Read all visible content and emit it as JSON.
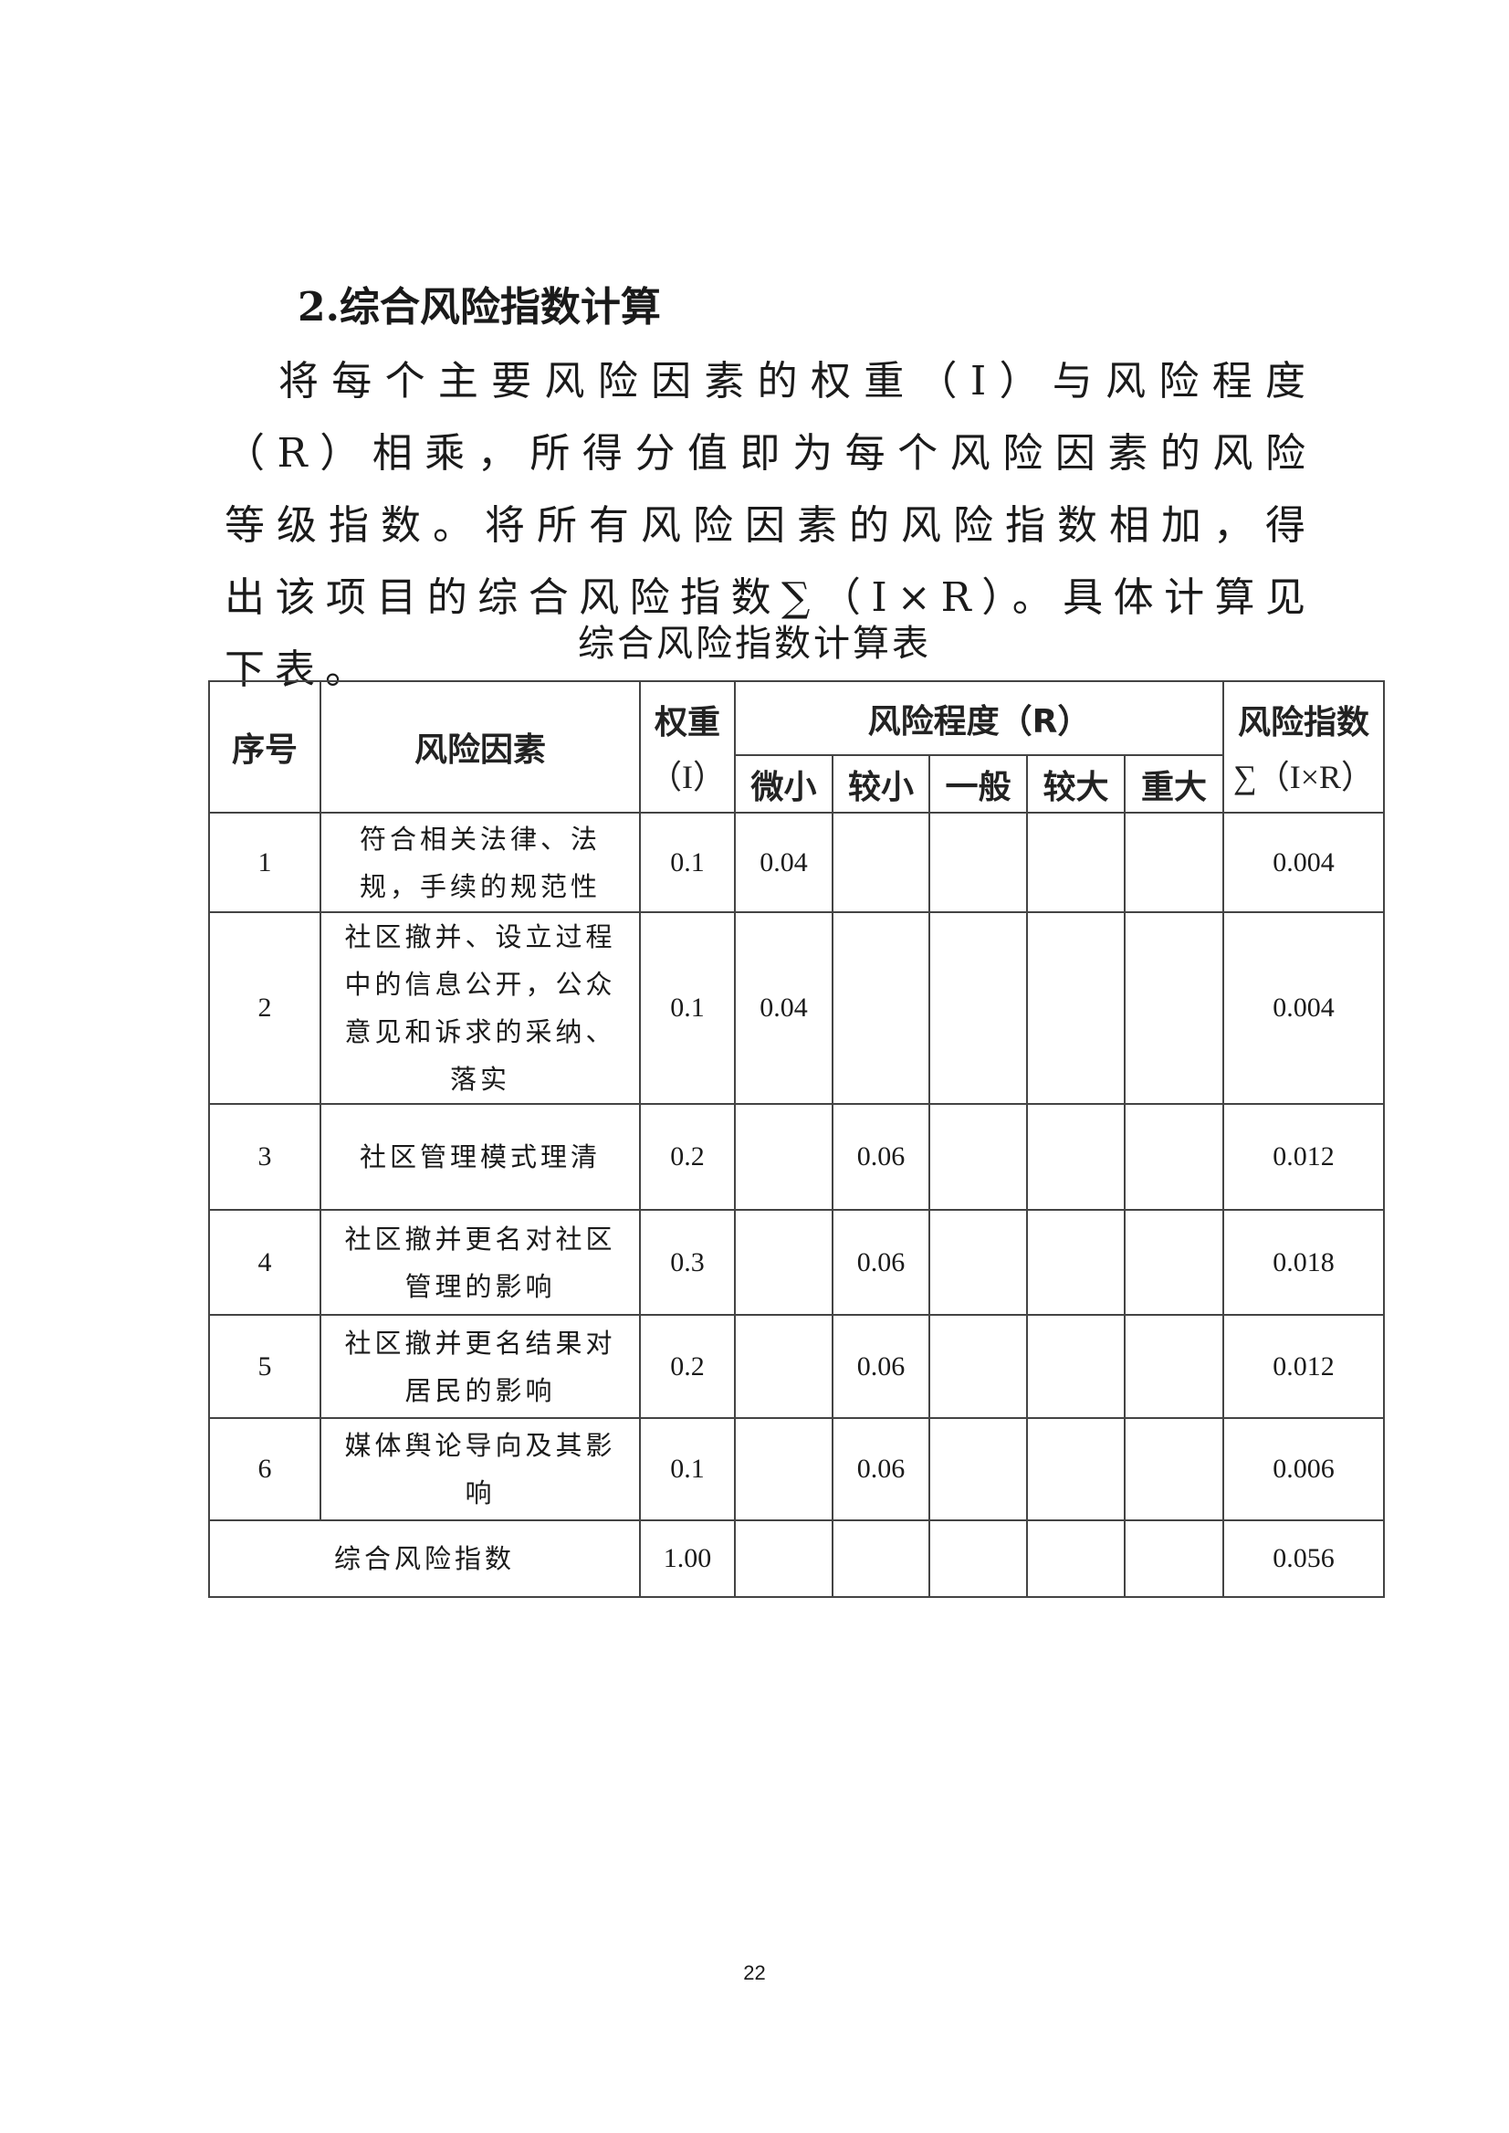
{
  "heading": "2.综合风险指数计算",
  "paragraph": "将每个主要风险因素的权重（I）与风险程度（R）相乘，所得分值即为每个风险因素的风险等级指数。将所有风险因素的风险指数相加，得出该项目的综合风险指数∑（I×R）。具体计算见下表。",
  "table": {
    "caption": "综合风险指数计算表",
    "headers": {
      "index": "序号",
      "factor": "风险因素",
      "weight_line1": "权重",
      "weight_line2": "（I）",
      "degree": "风险程度（R）",
      "levels": [
        "微小",
        "较小",
        "一般",
        "较大",
        "重大"
      ],
      "result_line1": "风险指数",
      "result_line2": "∑（I×R）"
    },
    "rows": [
      {
        "index": "1",
        "factor": "符合相关法律、法规，手续的规范性",
        "weight": "0.1",
        "levels": [
          "0.04",
          "",
          "",
          "",
          ""
        ],
        "result": "0.004"
      },
      {
        "index": "2",
        "factor": "社区撤并、设立过程中的信息公开，公众意见和诉求的采纳、落实",
        "weight": "0.1",
        "levels": [
          "0.04",
          "",
          "",
          "",
          ""
        ],
        "result": "0.004"
      },
      {
        "index": "3",
        "factor": "社区管理模式理清",
        "weight": "0.2",
        "levels": [
          "",
          "0.06",
          "",
          "",
          ""
        ],
        "result": "0.012"
      },
      {
        "index": "4",
        "factor": "社区撤并更名对社区管理的影响",
        "weight": "0.3",
        "levels": [
          "",
          "0.06",
          "",
          "",
          ""
        ],
        "result": "0.018"
      },
      {
        "index": "5",
        "factor": "社区撤并更名结果对居民的影响",
        "weight": "0.2",
        "levels": [
          "",
          "0.06",
          "",
          "",
          ""
        ],
        "result": "0.012"
      },
      {
        "index": "6",
        "factor": "媒体舆论导向及其影响",
        "weight": "0.1",
        "levels": [
          "",
          "0.06",
          "",
          "",
          ""
        ],
        "result": "0.006"
      }
    ],
    "total": {
      "label": "综合风险指数",
      "weight": "1.00",
      "result": "0.056"
    }
  },
  "page_number": "22"
}
